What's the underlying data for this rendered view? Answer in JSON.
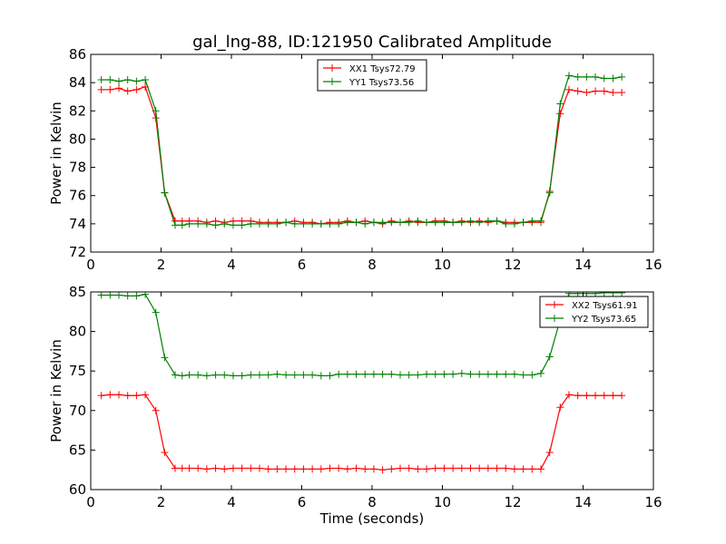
{
  "title": "gal_lng-88, ID:121950 Calibrated Amplitude",
  "chart_data": [
    {
      "type": "line",
      "xlabel": "",
      "ylabel": "Power in Kelvin",
      "xlim": [
        0,
        16
      ],
      "ylim": [
        72,
        86
      ],
      "xticks": [
        0,
        2,
        4,
        6,
        8,
        10,
        12,
        14,
        16
      ],
      "yticks": [
        72,
        74,
        76,
        78,
        80,
        82,
        84,
        86
      ],
      "legend_position": "top-center",
      "grid": false,
      "x": [
        0.3,
        0.55,
        0.8,
        1.05,
        1.3,
        1.55,
        1.85,
        2.1,
        2.4,
        2.6,
        2.8,
        3.05,
        3.3,
        3.55,
        3.8,
        4.05,
        4.3,
        4.55,
        4.8,
        5.05,
        5.3,
        5.55,
        5.8,
        6.05,
        6.3,
        6.55,
        6.8,
        7.05,
        7.3,
        7.55,
        7.8,
        8.05,
        8.3,
        8.55,
        8.8,
        9.05,
        9.3,
        9.55,
        9.8,
        10.05,
        10.3,
        10.55,
        10.8,
        11.05,
        11.3,
        11.55,
        11.8,
        12.05,
        12.3,
        12.55,
        12.8,
        13.05,
        13.35,
        13.6,
        13.85,
        14.1,
        14.35,
        14.6,
        14.85,
        15.1
      ],
      "series": [
        {
          "name": "XX1 Tsys72.79",
          "color": "#ff0000",
          "values": [
            83.5,
            83.5,
            83.6,
            83.4,
            83.5,
            83.7,
            81.5,
            76.2,
            74.2,
            74.2,
            74.2,
            74.2,
            74.1,
            74.2,
            74.1,
            74.2,
            74.2,
            74.2,
            74.1,
            74.1,
            74.1,
            74.1,
            74.2,
            74.1,
            74.1,
            74.0,
            74.1,
            74.1,
            74.2,
            74.1,
            74.2,
            74.1,
            74.0,
            74.2,
            74.1,
            74.2,
            74.1,
            74.1,
            74.2,
            74.2,
            74.1,
            74.2,
            74.1,
            74.2,
            74.1,
            74.2,
            74.1,
            74.1,
            74.1,
            74.1,
            74.1,
            76.3,
            81.8,
            83.5,
            83.4,
            83.3,
            83.4,
            83.4,
            83.3,
            83.3
          ]
        },
        {
          "name": "YY1 Tsys73.56",
          "color": "#008000",
          "values": [
            84.2,
            84.2,
            84.1,
            84.2,
            84.1,
            84.2,
            82.0,
            76.2,
            73.9,
            73.9,
            74.0,
            74.0,
            74.0,
            73.9,
            74.0,
            73.9,
            73.9,
            74.0,
            74.0,
            74.0,
            74.0,
            74.1,
            74.0,
            74.0,
            74.0,
            74.0,
            74.0,
            74.0,
            74.1,
            74.1,
            74.0,
            74.1,
            74.1,
            74.1,
            74.1,
            74.1,
            74.2,
            74.1,
            74.1,
            74.1,
            74.1,
            74.1,
            74.2,
            74.1,
            74.2,
            74.2,
            74.0,
            74.0,
            74.1,
            74.2,
            74.2,
            76.2,
            82.5,
            84.5,
            84.4,
            84.4,
            84.4,
            84.3,
            84.3,
            84.4
          ]
        }
      ]
    },
    {
      "type": "line",
      "xlabel": "Time (seconds)",
      "ylabel": "Power in Kelvin",
      "xlim": [
        0,
        16
      ],
      "ylim": [
        60,
        85
      ],
      "xticks": [
        0,
        2,
        4,
        6,
        8,
        10,
        12,
        14,
        16
      ],
      "yticks": [
        60,
        65,
        70,
        75,
        80,
        85
      ],
      "legend_position": "top-right",
      "grid": false,
      "x": [
        0.3,
        0.55,
        0.8,
        1.05,
        1.3,
        1.55,
        1.85,
        2.1,
        2.4,
        2.6,
        2.8,
        3.05,
        3.3,
        3.55,
        3.8,
        4.05,
        4.3,
        4.55,
        4.8,
        5.05,
        5.3,
        5.55,
        5.8,
        6.05,
        6.3,
        6.55,
        6.8,
        7.05,
        7.3,
        7.55,
        7.8,
        8.05,
        8.3,
        8.55,
        8.8,
        9.05,
        9.3,
        9.55,
        9.8,
        10.05,
        10.3,
        10.55,
        10.8,
        11.05,
        11.3,
        11.55,
        11.8,
        12.05,
        12.3,
        12.55,
        12.8,
        13.05,
        13.35,
        13.6,
        13.85,
        14.1,
        14.35,
        14.6,
        14.85,
        15.1
      ],
      "series": [
        {
          "name": "XX2 Tsys61.91",
          "color": "#ff0000",
          "values": [
            71.9,
            72.0,
            72.0,
            71.9,
            71.9,
            72.0,
            70.0,
            64.7,
            62.7,
            62.7,
            62.7,
            62.7,
            62.6,
            62.7,
            62.6,
            62.7,
            62.7,
            62.7,
            62.7,
            62.6,
            62.6,
            62.6,
            62.6,
            62.6,
            62.6,
            62.6,
            62.7,
            62.7,
            62.6,
            62.7,
            62.6,
            62.6,
            62.5,
            62.6,
            62.7,
            62.7,
            62.6,
            62.6,
            62.7,
            62.7,
            62.7,
            62.7,
            62.7,
            62.7,
            62.7,
            62.7,
            62.7,
            62.6,
            62.6,
            62.6,
            62.6,
            64.7,
            70.4,
            72.0,
            71.9,
            71.9,
            71.9,
            71.9,
            71.9,
            71.9
          ]
        },
        {
          "name": "YY2 Tsys73.65",
          "color": "#008000",
          "values": [
            84.6,
            84.6,
            84.6,
            84.5,
            84.5,
            84.7,
            82.4,
            76.7,
            74.5,
            74.4,
            74.5,
            74.5,
            74.4,
            74.5,
            74.5,
            74.4,
            74.4,
            74.5,
            74.5,
            74.5,
            74.6,
            74.5,
            74.5,
            74.5,
            74.5,
            74.4,
            74.4,
            74.6,
            74.6,
            74.6,
            74.6,
            74.6,
            74.6,
            74.6,
            74.5,
            74.5,
            74.5,
            74.6,
            74.6,
            74.6,
            74.6,
            74.7,
            74.6,
            74.6,
            74.6,
            74.6,
            74.6,
            74.6,
            74.5,
            74.5,
            74.7,
            76.8,
            81.5,
            84.8,
            84.8,
            84.8,
            84.8,
            84.9,
            84.9,
            84.9
          ]
        }
      ]
    }
  ]
}
